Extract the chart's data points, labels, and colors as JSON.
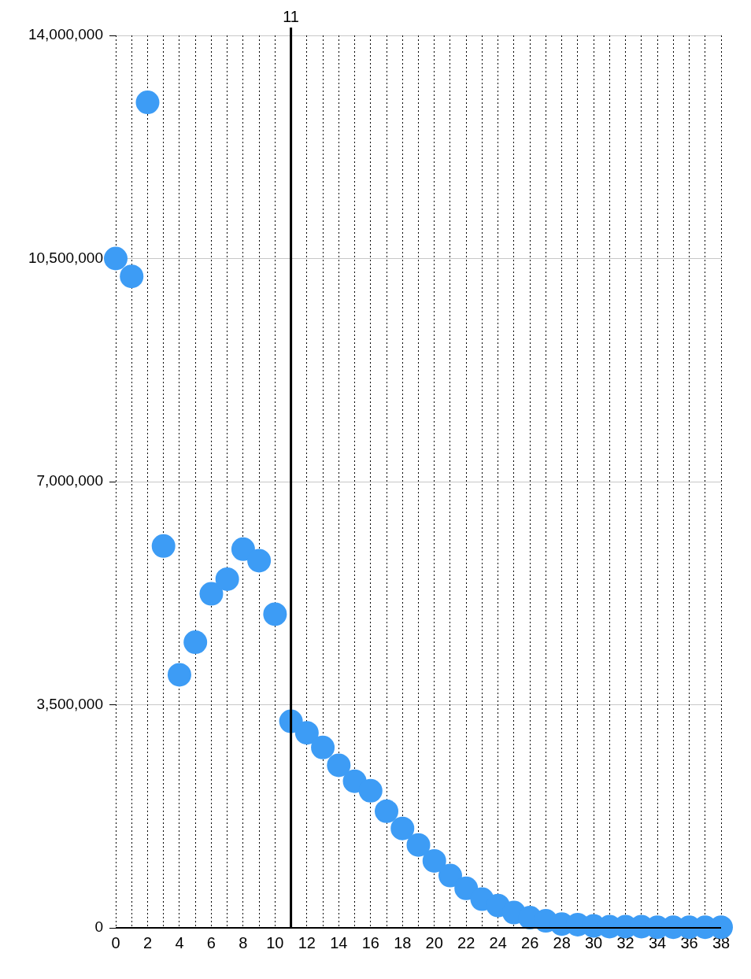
{
  "chart_data": {
    "type": "scatter",
    "x": [
      0,
      1,
      2,
      3,
      4,
      5,
      6,
      7,
      8,
      9,
      10,
      11,
      12,
      13,
      14,
      15,
      16,
      17,
      18,
      19,
      20,
      21,
      22,
      23,
      24,
      25,
      26,
      27,
      28,
      29,
      30,
      31,
      32,
      33,
      34,
      35,
      36,
      37,
      38
    ],
    "series": [
      {
        "color": "#3d9cf5",
        "values": [
          10500000,
          10220000,
          12950000,
          5990000,
          3970000,
          4480000,
          5240000,
          5470000,
          5940000,
          5760000,
          4920000,
          3240000,
          3060000,
          2830000,
          2550000,
          2300000,
          2150000,
          1830000,
          1560000,
          1300000,
          1050000,
          820000,
          620000,
          450000,
          350000,
          240000,
          160000,
          110000,
          60000,
          50000,
          30000,
          20000,
          20000,
          20000,
          10000,
          10000,
          10000,
          10000,
          10000
        ]
      }
    ],
    "xlim": [
      0,
      38
    ],
    "ylim": [
      0,
      14000000
    ],
    "xticks": [
      0,
      {
        "value": 1,
        "label": null
      },
      2,
      {
        "value": 3,
        "label": null
      },
      4,
      {
        "value": 5,
        "label": null
      },
      6,
      {
        "value": 7,
        "label": null
      },
      8,
      {
        "value": 9,
        "label": null
      },
      10,
      {
        "value": 11,
        "label": null
      },
      12,
      {
        "value": 13,
        "label": null
      },
      14,
      {
        "value": 15,
        "label": null
      },
      16,
      {
        "value": 17,
        "label": null
      },
      18,
      {
        "value": 19,
        "label": null
      },
      20,
      {
        "value": 21,
        "label": null
      },
      22,
      {
        "value": 23,
        "label": null
      },
      24,
      {
        "value": 25,
        "label": null
      },
      26,
      {
        "value": 27,
        "label": null
      },
      28,
      {
        "value": 29,
        "label": null
      },
      30,
      {
        "value": 31,
        "label": null
      },
      32,
      {
        "value": 33,
        "label": null
      },
      34,
      {
        "value": 35,
        "label": null
      },
      36,
      {
        "value": 37,
        "label": null
      },
      38
    ],
    "yticks": [
      0,
      {
        "value": 3500000,
        "label": "3,500,000"
      },
      {
        "value": 7000000,
        "label": "7,000,000"
      },
      {
        "value": 10500000,
        "label": "10,500,000"
      },
      {
        "value": 14000000,
        "label": "14,000,000"
      }
    ],
    "ref_lines": [
      {
        "axis": "x",
        "value": 11,
        "label": "11",
        "color": "#000000"
      }
    ],
    "grid": true,
    "marker": "circle",
    "legend": false
  }
}
